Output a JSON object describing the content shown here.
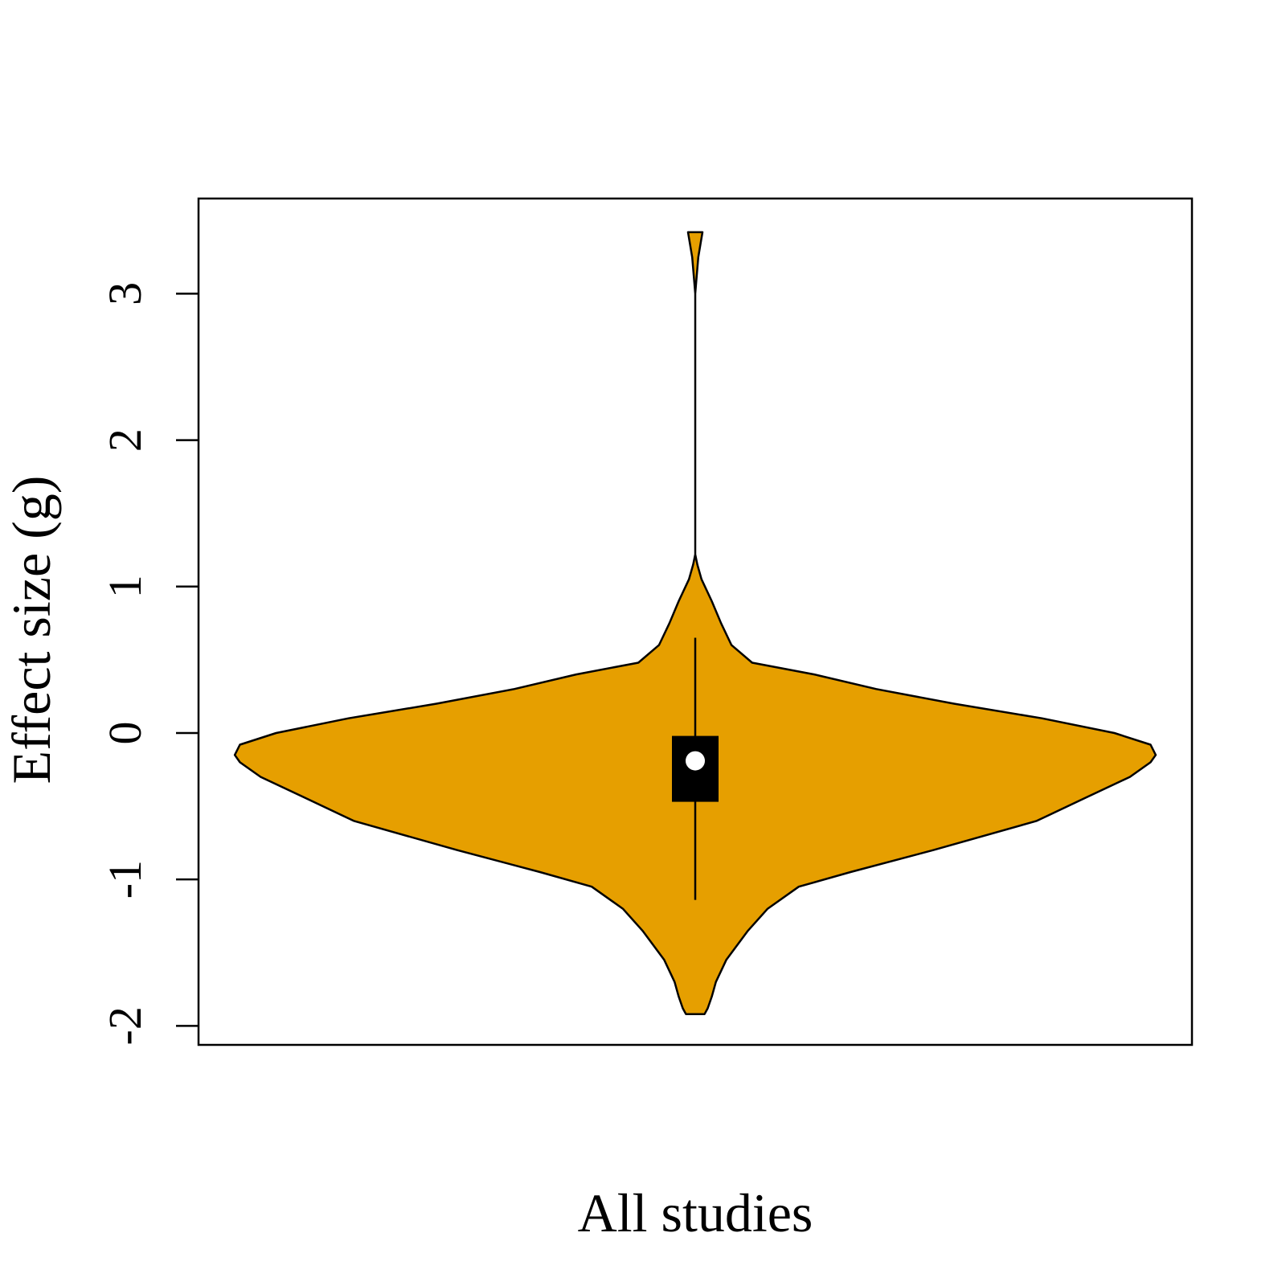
{
  "chart_data": {
    "type": "violin",
    "title": "",
    "xlabel": "All studies",
    "ylabel": "Effect size (g)",
    "ylim": [
      -2.13,
      3.65
    ],
    "yticks": [
      -2,
      -1,
      0,
      1,
      2,
      3
    ],
    "ytick_labels": [
      "-2",
      "-1",
      "0",
      "1",
      "2",
      "3"
    ],
    "grid": false,
    "legend": "none",
    "fill_color": "#E69F00",
    "outline_color": "#000000",
    "summary": {
      "median": -0.19,
      "q1": -0.47,
      "q3": -0.02,
      "whisker_low": -1.14,
      "whisker_high": 0.65,
      "min": -1.92,
      "max": 3.42
    },
    "density_profile": {
      "y": [
        -1.92,
        -1.88,
        -1.8,
        -1.7,
        -1.55,
        -1.35,
        -1.2,
        -1.05,
        -0.95,
        -0.8,
        -0.6,
        -0.45,
        -0.3,
        -0.2,
        -0.15,
        -0.08,
        0.0,
        0.1,
        0.2,
        0.3,
        0.4,
        0.48,
        0.6,
        0.75,
        0.9,
        1.05,
        1.15,
        1.22,
        1.4,
        2.0,
        3.0,
        3.08,
        3.25,
        3.42
      ],
      "half_width": [
        0.0094,
        0.0125,
        0.0167,
        0.0208,
        0.0312,
        0.0531,
        0.0729,
        0.1042,
        0.1563,
        0.2396,
        0.3438,
        0.3906,
        0.4375,
        0.4583,
        0.4635,
        0.4583,
        0.4219,
        0.349,
        0.2604,
        0.1823,
        0.1198,
        0.0573,
        0.0365,
        0.026,
        0.0167,
        0.0063,
        0.0021,
        0.0,
        0.0,
        0.0,
        0.0,
        0.001,
        0.0031,
        0.0073
      ]
    }
  }
}
